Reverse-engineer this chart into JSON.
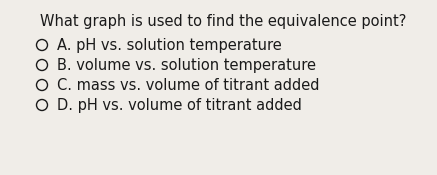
{
  "question_line1": "What graph is used to find the equivalence point?",
  "options": [
    "A. pH vs. solution temperature",
    "B. volume vs. solution temperature",
    "C. mass vs. volume of titrant added",
    "D. pH vs. volume of titrant added"
  ],
  "background_color": "#f0ede8",
  "text_color": "#1a1a1a",
  "question_fontsize": 10.5,
  "option_fontsize": 10.5,
  "figsize": [
    4.37,
    1.75
  ],
  "dpi": 100
}
